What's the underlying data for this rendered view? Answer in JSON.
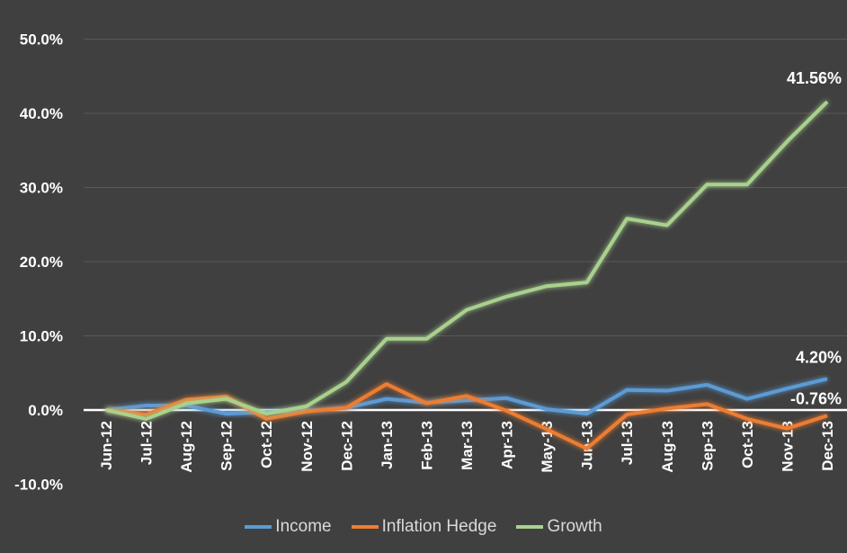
{
  "chart_data": {
    "type": "line",
    "categories": [
      "Jun-12",
      "Jul-12",
      "Aug-12",
      "Sep-12",
      "Oct-12",
      "Nov-12",
      "Dec-12",
      "Jan-13",
      "Feb-13",
      "Mar-13",
      "Apr-13",
      "May-13",
      "Jun-13",
      "Jul-13",
      "Aug-13",
      "Sep-13",
      "Oct-13",
      "Nov-13",
      "Dec-13"
    ],
    "series": [
      {
        "name": "Income",
        "color": "#5b9bd5",
        "values": [
          0,
          0.6,
          0.6,
          -0.5,
          -0.3,
          -0.1,
          0.3,
          1.5,
          1.0,
          1.3,
          1.6,
          0.1,
          -0.5,
          2.7,
          2.6,
          3.4,
          1.5,
          2.9,
          4.2
        ],
        "end_label": "4.20%"
      },
      {
        "name": "Inflation Hedge",
        "color": "#ed7d31",
        "values": [
          0,
          -0.6,
          1.4,
          1.8,
          -1.2,
          -0.2,
          0.3,
          3.5,
          0.9,
          1.9,
          -0.1,
          -2.6,
          -5.2,
          -0.6,
          0.2,
          0.8,
          -1.2,
          -2.5,
          -0.76
        ],
        "end_label": "-0.76%"
      },
      {
        "name": "Growth",
        "color": "#a9d18e",
        "values": [
          0,
          -1.2,
          0.9,
          1.5,
          -0.5,
          0.5,
          3.8,
          9.6,
          9.6,
          13.5,
          15.3,
          16.7,
          17.2,
          25.8,
          24.9,
          30.4,
          30.4,
          36.2,
          41.56
        ],
        "end_label": "41.56%"
      }
    ],
    "yticks": [
      "-10.0%",
      "0.0%",
      "10.0%",
      "20.0%",
      "30.0%",
      "40.0%",
      "50.0%"
    ],
    "ytick_values": [
      -10,
      0,
      10,
      20,
      30,
      40,
      50
    ],
    "ylim": [
      -10,
      50
    ],
    "title": "",
    "xlabel": "",
    "ylabel": "",
    "grid": true,
    "legend_position": "bottom"
  }
}
